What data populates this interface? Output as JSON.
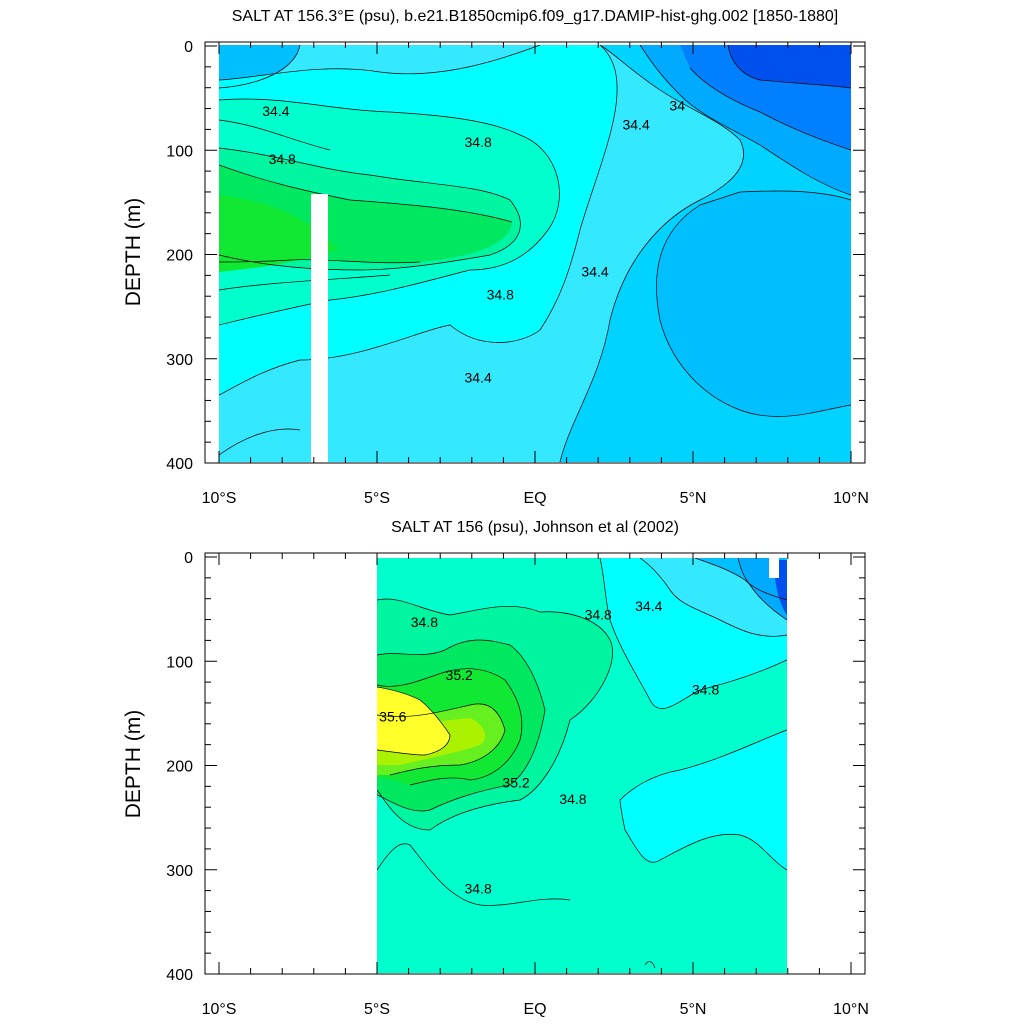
{
  "chart_data": [
    {
      "type": "contour",
      "title": "SALT AT 156.3°E (psu), b.e21.B1850cmip6.f09_g17.DAMIP-hist-ghg.002 [1850-1880]",
      "ylabel": "DEPTH (m)",
      "xlabel": "",
      "xlim": [
        -10,
        10
      ],
      "ylim": [
        400,
        0
      ],
      "x_ticks": [
        "10°S",
        "5°S",
        "EQ",
        "5°N",
        "10°N"
      ],
      "y_ticks": [
        "0",
        "100",
        "200",
        "300",
        "400"
      ],
      "contour_levels": [
        33.8,
        34.0,
        34.2,
        34.4,
        34.6,
        34.8,
        35.0
      ],
      "contour_labels": [
        {
          "text": "34.4",
          "x": -8.2,
          "depth": 67
        },
        {
          "text": "34.8",
          "x": -8.0,
          "depth": 113
        },
        {
          "text": "34.8",
          "x": -1.8,
          "depth": 97
        },
        {
          "text": "34.4",
          "x": 3.2,
          "depth": 80
        },
        {
          "text": "34",
          "x": 4.5,
          "depth": 62
        },
        {
          "text": "34.4",
          "x": 1.9,
          "depth": 221
        },
        {
          "text": "34.8",
          "x": -1.1,
          "depth": 243
        },
        {
          "text": "34.4",
          "x": -1.8,
          "depth": 323
        }
      ],
      "missing_data_column": {
        "x": [
          -7.1,
          -6.6
        ],
        "depth": [
          145,
          400
        ]
      }
    },
    {
      "type": "contour",
      "title": "SALT AT 156 (psu), Johnson et al (2002)",
      "ylabel": "DEPTH (m)",
      "xlabel": "",
      "xlim": [
        -10,
        10
      ],
      "ylim": [
        400,
        0
      ],
      "x_ticks": [
        "10°S",
        "5°S",
        "EQ",
        "5°N",
        "10°N"
      ],
      "y_ticks": [
        "0",
        "100",
        "200",
        "300",
        "400"
      ],
      "data_extent_x": [
        -5,
        8
      ],
      "contour_levels": [
        33.8,
        34.0,
        34.2,
        34.4,
        34.6,
        34.8,
        35.0,
        35.2,
        35.4,
        35.6
      ],
      "contour_labels": [
        {
          "text": "34.8",
          "x": -3.5,
          "depth": 67
        },
        {
          "text": "34.8",
          "x": 2.0,
          "depth": 60
        },
        {
          "text": "34.4",
          "x": 3.6,
          "depth": 52
        },
        {
          "text": "35.2",
          "x": -2.4,
          "depth": 118
        },
        {
          "text": "35.6",
          "x": -4.5,
          "depth": 158
        },
        {
          "text": "34.8",
          "x": 5.4,
          "depth": 132
        },
        {
          "text": "35.2",
          "x": -0.6,
          "depth": 221
        },
        {
          "text": "34.8",
          "x": 1.2,
          "depth": 237
        },
        {
          "text": "34.8",
          "x": -1.8,
          "depth": 323
        }
      ]
    }
  ]
}
